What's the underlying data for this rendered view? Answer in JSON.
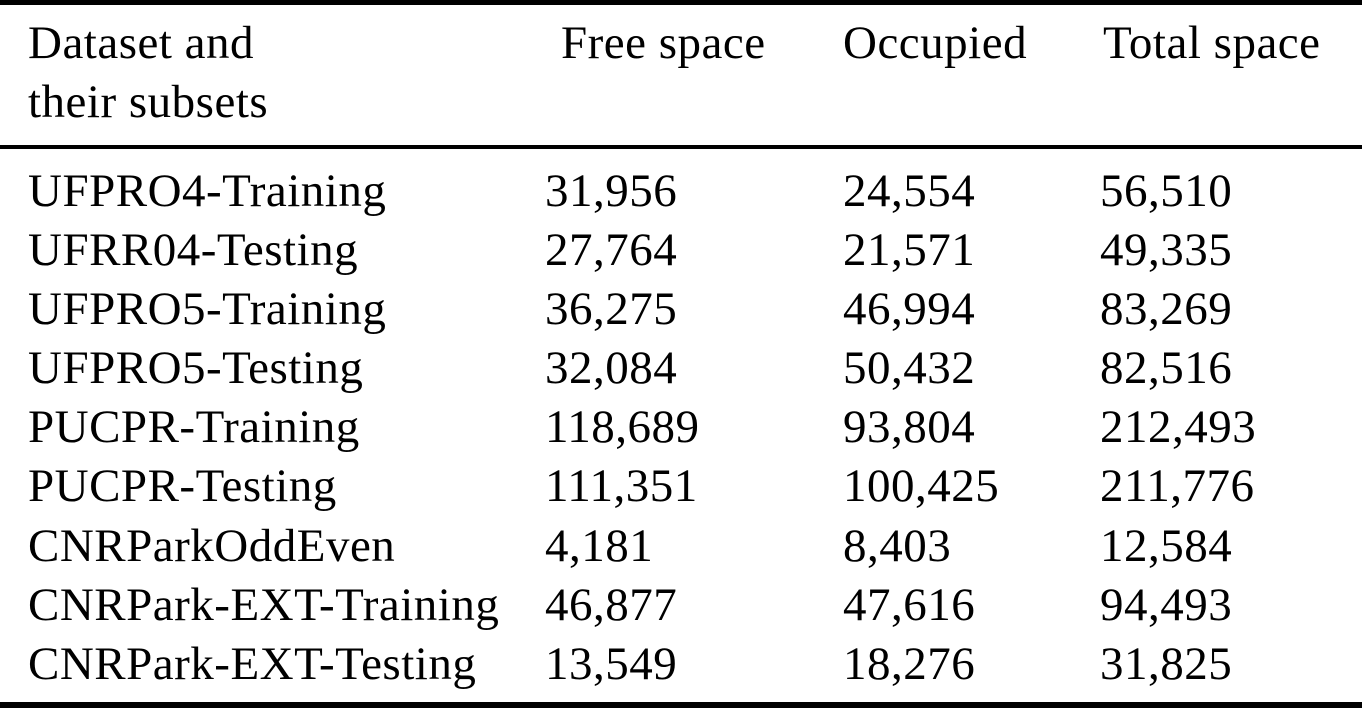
{
  "page": {
    "background_color": "#ffffff",
    "text_color": "#000000"
  },
  "chart_data": {
    "type": "table",
    "header": {
      "dataset_line1": "Dataset and",
      "dataset_line2": "their subsets",
      "free": "Free space",
      "occupied": "Occupied",
      "total": "Total space"
    },
    "columns": [
      "Dataset and their subsets",
      "Free space",
      "Occupied",
      "Total space"
    ],
    "rows": [
      {
        "name": "UFPRO4-Training",
        "free": "31,956",
        "occupied": "24,554",
        "total": "56,510"
      },
      {
        "name": "UFRR04-Testing",
        "free": "27,764",
        "occupied": "21,571",
        "total": "49,335"
      },
      {
        "name": "UFPRO5-Training",
        "free": "36,275",
        "occupied": "46,994",
        "total": "83,269"
      },
      {
        "name": "UFPRO5-Testing",
        "free": "32,084",
        "occupied": "50,432",
        "total": "82,516"
      },
      {
        "name": "PUCPR-Training",
        "free": "118,689",
        "occupied": "93,804",
        "total": "212,493"
      },
      {
        "name": "PUCPR-Testing",
        "free": "111,351",
        "occupied": "100,425",
        "total": "211,776"
      },
      {
        "name": "CNRParkOddEven",
        "free": "4,181",
        "occupied": "8,403",
        "total": "12,584"
      },
      {
        "name": "CNRPark-EXT-Training",
        "free": "46,877",
        "occupied": "47,616",
        "total": "94,493"
      },
      {
        "name": "CNRPark-EXT-Testing",
        "free": "13,549",
        "occupied": "18,276",
        "total": "31,825"
      }
    ]
  }
}
